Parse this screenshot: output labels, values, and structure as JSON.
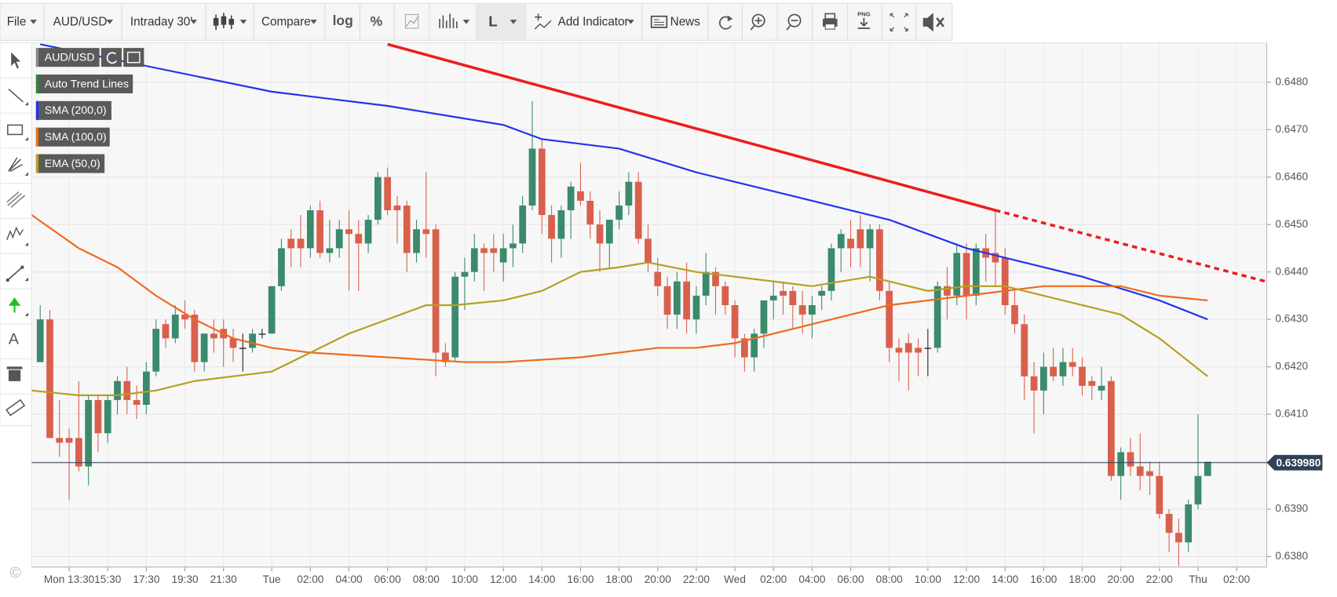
{
  "toolbar": {
    "file": "File",
    "symbol": "AUD/USD",
    "interval": "Intraday 30'",
    "compare": "Compare",
    "log": "log",
    "percent": "%",
    "line_style": "L",
    "add_indicator": "Add Indicator",
    "news": "News",
    "png": "PNG"
  },
  "tools": {
    "text_tool": "A"
  },
  "copyright": "©",
  "chart_data": {
    "type": "candlestick",
    "symbol": "AUD/USD",
    "up_color": "#3b8a6c",
    "down_color": "#d9604c",
    "doji_color": "#222222",
    "x": [
      12,
      12.5,
      13,
      13.5,
      14,
      14.5,
      15,
      15.5,
      16,
      16.5,
      17,
      17.5,
      18,
      18.5,
      19,
      19.5,
      20,
      20.5,
      21,
      21.5,
      22,
      22.5,
      23,
      23.5,
      24,
      24.5,
      25,
      25.5,
      26,
      26.5,
      27,
      27.5,
      28,
      28.5,
      29,
      29.5,
      30,
      30.5,
      31,
      31.5,
      32,
      32.5,
      33,
      33.5,
      34,
      34.5,
      35,
      35.5,
      36,
      36.5,
      37,
      37.5,
      38,
      38.5,
      39,
      39.5,
      40,
      40.5,
      41,
      41.5,
      42,
      42.5,
      43,
      43.5,
      44,
      44.5,
      45,
      45.5,
      46,
      46.5,
      47,
      47.5,
      48,
      48.5,
      49,
      49.5,
      50,
      50.5,
      51,
      51.5,
      52,
      52.5,
      53,
      53.5,
      54,
      54.5,
      55,
      55.5,
      56,
      56.5,
      57,
      57.5,
      58,
      58.5,
      59,
      59.5,
      60,
      60.5,
      61,
      61.5,
      62,
      62.5,
      63,
      63.5,
      64,
      64.5,
      65,
      65.5,
      66,
      66.5,
      67,
      67.5,
      68,
      68.5,
      69,
      69.5,
      70,
      70.5,
      71,
      71.5,
      72,
      72.5
    ],
    "open": [
      0.6421,
      0.643,
      0.6405,
      0.6405,
      0.6405,
      0.6399,
      0.6413,
      0.6406,
      0.6413,
      0.6417,
      0.6413,
      0.6412,
      0.6419,
      0.6429,
      0.6426,
      0.6431,
      0.6431,
      0.6421,
      0.6427,
      0.6428,
      0.6426,
      0.6424,
      0.6424,
      0.6427,
      0.6427,
      0.6437,
      0.6447,
      0.6447,
      0.6445,
      0.6453,
      0.6444,
      0.6445,
      0.6449,
      0.6448,
      0.6446,
      0.6451,
      0.646,
      0.6454,
      0.6454,
      0.6444,
      0.6449,
      0.6449,
      0.6423,
      0.6422,
      0.6439,
      0.644,
      0.6445,
      0.6445,
      0.6442,
      0.6445,
      0.6446,
      0.6454,
      0.6466,
      0.6452,
      0.6447,
      0.6453,
      0.6457,
      0.6455,
      0.645,
      0.6446,
      0.6451,
      0.6454,
      0.6459,
      0.6447,
      0.644,
      0.6437,
      0.6431,
      0.6438,
      0.643,
      0.6435,
      0.644,
      0.6437,
      0.6433,
      0.6426,
      0.6422,
      0.6427,
      0.6434,
      0.6436,
      0.6436,
      0.6433,
      0.6431,
      0.6435,
      0.6436,
      0.6445,
      0.6447,
      0.6449,
      0.6445,
      0.6449,
      0.6436,
      0.6424,
      0.6425,
      0.6424,
      0.6424,
      0.6424,
      0.6437,
      0.6435,
      0.6444,
      0.6435,
      0.6445,
      0.6444,
      0.6443,
      0.6433,
      0.6429,
      0.6418,
      0.6415,
      0.642,
      0.6418,
      0.6421,
      0.642,
      0.6417,
      0.6415,
      0.6417,
      0.6397,
      0.6402,
      0.6399,
      0.6398,
      0.6397,
      0.6389,
      0.6385,
      0.6383,
      0.6391,
      0.6397
    ],
    "high": [
      0.6433,
      0.6432,
      0.6413,
      0.6407,
      0.6417,
      0.6414,
      0.6414,
      0.6414,
      0.6418,
      0.642,
      0.6416,
      0.6421,
      0.643,
      0.643,
      0.6433,
      0.6434,
      0.6432,
      0.6427,
      0.643,
      0.643,
      0.6428,
      0.6427,
      0.6428,
      0.6428,
      0.6437,
      0.6447,
      0.6449,
      0.6452,
      0.6454,
      0.6455,
      0.6451,
      0.6451,
      0.6453,
      0.6451,
      0.6452,
      0.6461,
      0.6462,
      0.6456,
      0.6455,
      0.6451,
      0.6461,
      0.645,
      0.6425,
      0.644,
      0.6443,
      0.6448,
      0.6446,
      0.6448,
      0.6448,
      0.645,
      0.6456,
      0.6476,
      0.6468,
      0.6454,
      0.6454,
      0.6459,
      0.6463,
      0.6457,
      0.6453,
      0.6451,
      0.6457,
      0.6461,
      0.6461,
      0.645,
      0.6443,
      0.6439,
      0.644,
      0.6442,
      0.6437,
      0.6444,
      0.6441,
      0.6438,
      0.6434,
      0.6427,
      0.6428,
      0.6434,
      0.6438,
      0.6438,
      0.6437,
      0.6436,
      0.6435,
      0.6437,
      0.6446,
      0.6449,
      0.6451,
      0.6452,
      0.645,
      0.645,
      0.6438,
      0.6426,
      0.6427,
      0.6426,
      0.6428,
      0.6438,
      0.6441,
      0.6446,
      0.6446,
      0.6446,
      0.6448,
      0.6453,
      0.6445,
      0.6436,
      0.6431,
      0.6421,
      0.6423,
      0.6424,
      0.6424,
      0.6424,
      0.6422,
      0.6418,
      0.642,
      0.6418,
      0.6403,
      0.6405,
      0.6406,
      0.64,
      0.64,
      0.639,
      0.6388,
      0.6392,
      0.641,
      0.64
    ],
    "low": [
      0.6421,
      0.6405,
      0.6401,
      0.6392,
      0.6398,
      0.6395,
      0.6402,
      0.6404,
      0.641,
      0.641,
      0.6409,
      0.641,
      0.6418,
      0.6424,
      0.6425,
      0.6428,
      0.6419,
      0.6419,
      0.6423,
      0.642,
      0.6421,
      0.6419,
      0.6423,
      0.6426,
      0.6427,
      0.6436,
      0.6441,
      0.6441,
      0.6443,
      0.6443,
      0.6442,
      0.6443,
      0.6436,
      0.6436,
      0.6444,
      0.645,
      0.6452,
      0.6446,
      0.644,
      0.6442,
      0.6443,
      0.6418,
      0.642,
      0.6421,
      0.6432,
      0.6438,
      0.6436,
      0.644,
      0.6438,
      0.6441,
      0.6444,
      0.6453,
      0.6448,
      0.6442,
      0.6443,
      0.6447,
      0.6454,
      0.6447,
      0.644,
      0.6441,
      0.6449,
      0.6452,
      0.6446,
      0.644,
      0.6435,
      0.6428,
      0.6428,
      0.6427,
      0.6427,
      0.6433,
      0.6431,
      0.6431,
      0.6422,
      0.6419,
      0.6419,
      0.6424,
      0.643,
      0.6431,
      0.6428,
      0.6427,
      0.6426,
      0.6432,
      0.6434,
      0.644,
      0.6441,
      0.6441,
      0.6438,
      0.6434,
      0.6421,
      0.6417,
      0.6415,
      0.6418,
      0.6418,
      0.6423,
      0.643,
      0.6433,
      0.643,
      0.6433,
      0.6438,
      0.6437,
      0.6431,
      0.6427,
      0.6413,
      0.6406,
      0.641,
      0.6417,
      0.6416,
      0.6418,
      0.6414,
      0.6413,
      0.6413,
      0.6396,
      0.6392,
      0.6397,
      0.6394,
      0.6393,
      0.6388,
      0.6381,
      0.6378,
      0.6381,
      0.639,
      0.6397
    ],
    "close": [
      0.643,
      0.6405,
      0.6404,
      0.6404,
      0.6399,
      0.6413,
      0.6406,
      0.6413,
      0.6417,
      0.6413,
      0.6412,
      0.6419,
      0.6428,
      0.6426,
      0.6431,
      0.643,
      0.6421,
      0.6427,
      0.6426,
      0.6426,
      0.6424,
      0.6424,
      0.6427,
      0.6427,
      0.6437,
      0.6445,
      0.6445,
      0.6445,
      0.6453,
      0.6444,
      0.6445,
      0.6449,
      0.6448,
      0.6446,
      0.6451,
      0.646,
      0.6453,
      0.6453,
      0.6444,
      0.6449,
      0.6448,
      0.6423,
      0.6421,
      0.6439,
      0.644,
      0.6445,
      0.6444,
      0.6444,
      0.6445,
      0.6446,
      0.6454,
      0.6466,
      0.6452,
      0.6447,
      0.6453,
      0.6458,
      0.6455,
      0.645,
      0.6446,
      0.6451,
      0.6454,
      0.6459,
      0.6447,
      0.6442,
      0.6437,
      0.6431,
      0.6438,
      0.643,
      0.6435,
      0.644,
      0.6437,
      0.6433,
      0.6426,
      0.6422,
      0.6427,
      0.6434,
      0.6435,
      0.6435,
      0.6433,
      0.6431,
      0.6433,
      0.6436,
      0.6445,
      0.6448,
      0.6445,
      0.6445,
      0.6449,
      0.6436,
      0.6424,
      0.6423,
      0.6423,
      0.6423,
      0.6424,
      0.6437,
      0.6435,
      0.6444,
      0.6435,
      0.6445,
      0.6443,
      0.6442,
      0.6433,
      0.6429,
      0.6418,
      0.6415,
      0.642,
      0.6418,
      0.6421,
      0.642,
      0.6416,
      0.6416,
      0.6416,
      0.6397,
      0.6402,
      0.6399,
      0.6397,
      0.6397,
      0.6389,
      0.6385,
      0.6383,
      0.6391,
      0.6397,
      0.64
    ],
    "xlim": [
      11.56,
      75.56
    ],
    "xticks": [
      {
        "value": 13.5,
        "label": "Mon 13:30"
      },
      {
        "value": 15.5,
        "label": "15:30"
      },
      {
        "value": 17.5,
        "label": "17:30"
      },
      {
        "value": 19.5,
        "label": "19:30"
      },
      {
        "value": 21.5,
        "label": "21:30"
      },
      {
        "value": 24,
        "label": "Tue"
      },
      {
        "value": 26,
        "label": "02:00"
      },
      {
        "value": 28,
        "label": "04:00"
      },
      {
        "value": 30,
        "label": "06:00"
      },
      {
        "value": 32,
        "label": "08:00"
      },
      {
        "value": 34,
        "label": "10:00"
      },
      {
        "value": 36,
        "label": "12:00"
      },
      {
        "value": 38,
        "label": "14:00"
      },
      {
        "value": 40,
        "label": "16:00"
      },
      {
        "value": 42,
        "label": "18:00"
      },
      {
        "value": 44,
        "label": "20:00"
      },
      {
        "value": 46,
        "label": "22:00"
      },
      {
        "value": 48,
        "label": "Wed"
      },
      {
        "value": 50,
        "label": "02:00"
      },
      {
        "value": 52,
        "label": "04:00"
      },
      {
        "value": 54,
        "label": "06:00"
      },
      {
        "value": 56,
        "label": "08:00"
      },
      {
        "value": 58,
        "label": "10:00"
      },
      {
        "value": 60,
        "label": "12:00"
      },
      {
        "value": 62,
        "label": "14:00"
      },
      {
        "value": 64,
        "label": "16:00"
      },
      {
        "value": 66,
        "label": "18:00"
      },
      {
        "value": 68,
        "label": "20:00"
      },
      {
        "value": 70,
        "label": "22:00"
      },
      {
        "value": 72,
        "label": "Thu"
      },
      {
        "value": 74,
        "label": "02:00"
      }
    ],
    "ylim": [
      0.63778,
      0.64883
    ],
    "yticks": [
      {
        "value": 0.638,
        "label": "0.6380"
      },
      {
        "value": 0.639,
        "label": "0.6390"
      },
      {
        "value": 0.64,
        "label": "0.6400"
      },
      {
        "value": 0.641,
        "label": "0.6410"
      },
      {
        "value": 0.642,
        "label": "0.6420"
      },
      {
        "value": 0.643,
        "label": "0.6430"
      },
      {
        "value": 0.644,
        "label": "0.6440"
      },
      {
        "value": 0.645,
        "label": "0.6450"
      },
      {
        "value": 0.646,
        "label": "0.6460"
      },
      {
        "value": 0.647,
        "label": "0.6470"
      },
      {
        "value": 0.648,
        "label": "0.6480"
      }
    ],
    "grid": true,
    "trend_line": {
      "name": "Auto Trend Lines",
      "color": "#ee1c1c",
      "legend_color": "#2e8b2e",
      "x": [
        30,
        61.5
      ],
      "values": [
        0.6488,
        0.6453
      ],
      "projection": {
        "x": [
          61.5,
          75.5
        ],
        "values": [
          0.6453,
          0.6438
        ]
      }
    },
    "lines": [
      {
        "name": "SMA (200,0)",
        "color": "#2233ee",
        "x": [
          12,
          24,
          30,
          36,
          38,
          42,
          46,
          48,
          52,
          56,
          60,
          62,
          66,
          70,
          72.5
        ],
        "values": [
          0.6488,
          0.6478,
          0.6475,
          0.6471,
          0.6468,
          0.6466,
          0.6461,
          0.6459,
          0.6455,
          0.6451,
          0.6445,
          0.6443,
          0.6439,
          0.6434,
          0.643
        ]
      },
      {
        "name": "SMA (100,0)",
        "color": "#ee6a1c",
        "x": [
          11.56,
          14,
          16,
          18,
          20,
          22,
          24,
          26,
          30,
          34,
          36,
          40,
          44,
          46,
          48,
          52,
          56,
          60,
          62,
          64,
          66,
          68,
          70,
          72.5
        ],
        "values": [
          0.6452,
          0.6445,
          0.6441,
          0.6435,
          0.643,
          0.6426,
          0.6424,
          0.6423,
          0.6422,
          0.6421,
          0.6421,
          0.6422,
          0.6424,
          0.6424,
          0.6425,
          0.6429,
          0.6433,
          0.6435,
          0.6436,
          0.6437,
          0.6437,
          0.6437,
          0.6435,
          0.6434
        ]
      },
      {
        "name": "EMA (50,0)",
        "color": "#b5a020",
        "x": [
          11.56,
          14,
          16,
          18,
          20,
          22,
          24,
          26,
          28,
          30,
          32,
          33.5,
          36,
          38,
          40,
          42,
          43.5,
          46,
          48,
          52,
          55,
          58,
          60,
          62,
          64,
          66,
          68,
          70,
          72.5
        ],
        "values": [
          0.6415,
          0.6414,
          0.6414,
          0.6415,
          0.6417,
          0.6418,
          0.6419,
          0.6423,
          0.6427,
          0.643,
          0.6433,
          0.6433,
          0.6434,
          0.6436,
          0.644,
          0.6441,
          0.6442,
          0.644,
          0.6439,
          0.6437,
          0.6439,
          0.6436,
          0.6437,
          0.6437,
          0.6435,
          0.6433,
          0.6431,
          0.6426,
          0.6418
        ]
      }
    ],
    "last_price": {
      "value": 0.63998,
      "label": "0.639980",
      "color": "#2f4157"
    }
  }
}
